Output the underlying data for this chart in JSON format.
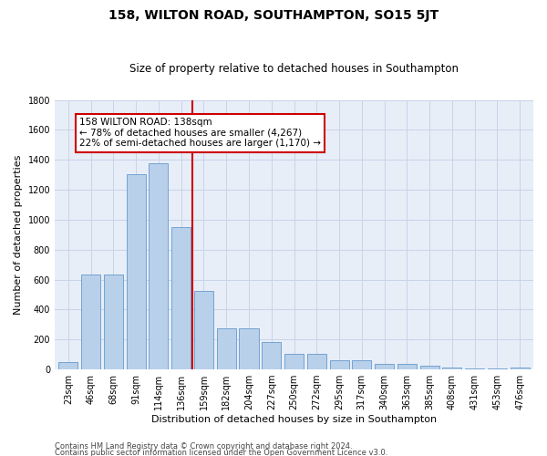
{
  "title": "158, WILTON ROAD, SOUTHAMPTON, SO15 5JT",
  "subtitle": "Size of property relative to detached houses in Southampton",
  "xlabel": "Distribution of detached houses by size in Southampton",
  "ylabel": "Number of detached properties",
  "categories": [
    "23sqm",
    "46sqm",
    "68sqm",
    "91sqm",
    "114sqm",
    "136sqm",
    "159sqm",
    "182sqm",
    "204sqm",
    "227sqm",
    "250sqm",
    "272sqm",
    "295sqm",
    "317sqm",
    "340sqm",
    "363sqm",
    "385sqm",
    "408sqm",
    "431sqm",
    "453sqm",
    "476sqm"
  ],
  "values": [
    50,
    635,
    635,
    1305,
    1380,
    950,
    525,
    275,
    275,
    185,
    105,
    105,
    60,
    60,
    35,
    35,
    25,
    15,
    5,
    5,
    15
  ],
  "bar_color": "#b8d0ea",
  "bar_edge_color": "#6699cc",
  "vline_x_index": 5,
  "vline_color": "#cc0000",
  "ylim": [
    0,
    1800
  ],
  "yticks": [
    0,
    200,
    400,
    600,
    800,
    1000,
    1200,
    1400,
    1600,
    1800
  ],
  "annotation_title": "158 WILTON ROAD: 138sqm",
  "annotation_line1": "← 78% of detached houses are smaller (4,267)",
  "annotation_line2": "22% of semi-detached houses are larger (1,170) →",
  "annotation_box_color": "#cc0000",
  "footer_line1": "Contains HM Land Registry data © Crown copyright and database right 2024.",
  "footer_line2": "Contains public sector information licensed under the Open Government Licence v3.0.",
  "background_color": "#e8eef8",
  "grid_color": "#c8d4e8",
  "title_fontsize": 10,
  "subtitle_fontsize": 8.5,
  "xlabel_fontsize": 8,
  "ylabel_fontsize": 8,
  "footer_fontsize": 6,
  "tick_fontsize": 7,
  "ann_fontsize": 7.5
}
